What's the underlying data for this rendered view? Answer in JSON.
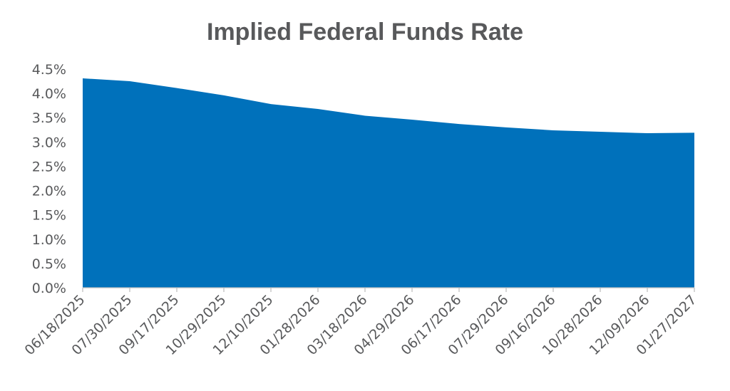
{
  "chart_data": {
    "type": "area",
    "title": "Implied Federal Funds Rate",
    "xlabel": "",
    "ylabel": "",
    "ylim": [
      0,
      4.5
    ],
    "y_ticks": [
      "0.0%",
      "0.5%",
      "1.0%",
      "1.5%",
      "2.0%",
      "2.5%",
      "3.0%",
      "3.5%",
      "4.0%",
      "4.5%"
    ],
    "grid": false,
    "legend": "none",
    "color": "#0071bb",
    "categories": [
      "06/18/2025",
      "07/30/2025",
      "09/17/2025",
      "10/29/2025",
      "12/10/2025",
      "01/28/2026",
      "03/18/2026",
      "04/29/2026",
      "06/17/2026",
      "07/29/2026",
      "09/16/2026",
      "10/28/2026",
      "12/09/2026",
      "01/27/2027"
    ],
    "values": [
      4.31,
      4.25,
      4.11,
      3.96,
      3.78,
      3.68,
      3.54,
      3.46,
      3.37,
      3.3,
      3.24,
      3.21,
      3.18,
      3.19
    ]
  }
}
